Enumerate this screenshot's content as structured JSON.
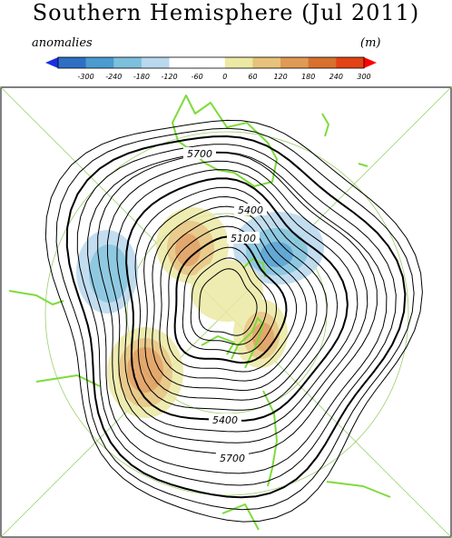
{
  "title": "Southern Hemisphere (Jul 2011)",
  "legend": {
    "left_label": "anomalies",
    "right_label": "(m)",
    "ticks": [
      "-300",
      "-240",
      "-180",
      "-120",
      "-60",
      "0",
      "60",
      "120",
      "180",
      "240",
      "300"
    ],
    "colors": [
      "#1a2ee0",
      "#2e6fc4",
      "#4a9bd0",
      "#7cc0dc",
      "#b9d8ee",
      "#ffffff",
      "#ffffff",
      "#ece9a4",
      "#e6c27a",
      "#df9a55",
      "#d8702e",
      "#e34214",
      "#ff0000"
    ]
  },
  "map": {
    "contour_labels": [
      "5700",
      "5400",
      "5100",
      "5400",
      "5700"
    ],
    "coastline_color": "#7ddc3c",
    "line_color": "#000000"
  }
}
